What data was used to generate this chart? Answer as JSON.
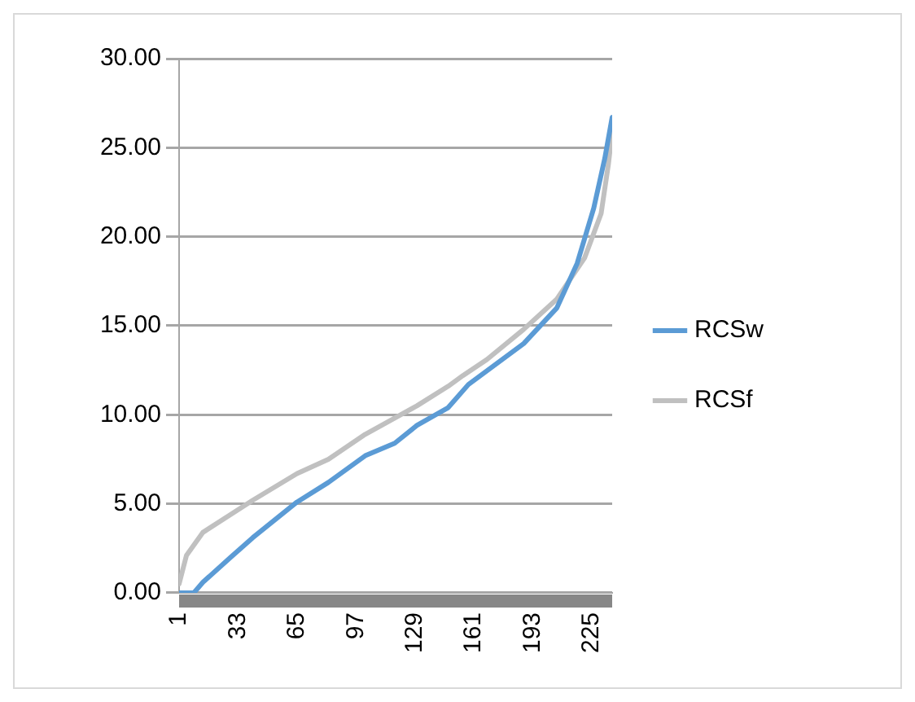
{
  "chart_data": {
    "type": "line",
    "xlim": [
      1,
      236
    ],
    "xticks": [
      1,
      33,
      65,
      97,
      129,
      161,
      193,
      225
    ],
    "ylim": [
      0,
      30
    ],
    "yticks": [
      {
        "value": 0,
        "label": "0.00"
      },
      {
        "value": 5,
        "label": "5.00"
      },
      {
        "value": 10,
        "label": "10.00"
      },
      {
        "value": 15,
        "label": "15.00"
      },
      {
        "value": 20,
        "label": "20.00"
      },
      {
        "value": 25,
        "label": "25.00"
      },
      {
        "value": 30,
        "label": "30.00"
      }
    ],
    "series": [
      {
        "name": "RCSw",
        "color": "#5b9bd5",
        "x": [
          1,
          9,
          14,
          29,
          41,
          65,
          82,
          102,
          118,
          130,
          147,
          158,
          188,
          206,
          217,
          226,
          232,
          236
        ],
        "values": [
          0,
          0,
          0.6,
          2.0,
          3.1,
          5.1,
          6.2,
          7.7,
          8.4,
          9.4,
          10.4,
          11.7,
          14.0,
          16.0,
          18.5,
          21.6,
          24.4,
          26.7
        ]
      },
      {
        "name": "RCSf",
        "color": "#c0c0c0",
        "x": [
          1,
          5,
          14,
          29,
          41,
          65,
          82,
          102,
          130,
          147,
          155,
          168,
          188,
          206,
          221,
          230,
          234,
          236
        ],
        "values": [
          0.5,
          2.1,
          3.4,
          4.4,
          5.2,
          6.7,
          7.5,
          8.9,
          10.5,
          11.6,
          12.2,
          13.1,
          14.8,
          16.5,
          18.8,
          21.3,
          24.1,
          25.9
        ]
      }
    ],
    "grid": "y",
    "legend": "right",
    "marker": "none",
    "line_style": "solid"
  }
}
